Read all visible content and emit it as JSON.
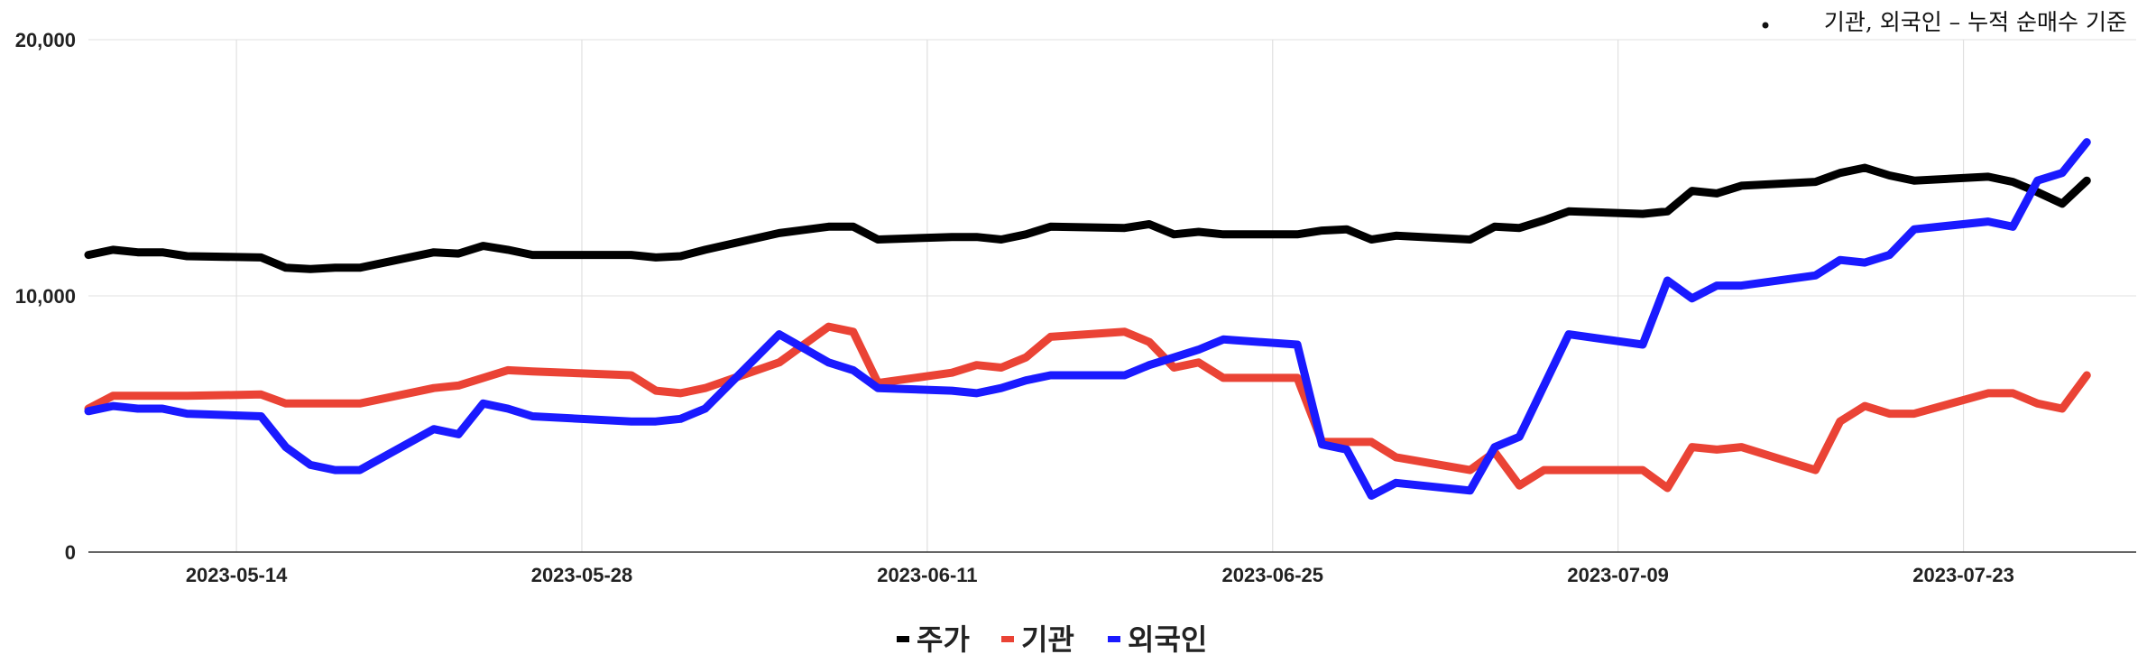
{
  "annotation": "기관, 외국인 – 누적 순매수 기준",
  "chart_data": {
    "type": "line",
    "x_axis": {
      "min": "2023-05-08",
      "max": "2023-07-30",
      "ticks": [
        "2023-05-14",
        "2023-05-28",
        "2023-06-11",
        "2023-06-25",
        "2023-07-09",
        "2023-07-23"
      ]
    },
    "y_axis": {
      "min": 0,
      "max": 20000,
      "ticks": [
        0,
        10000,
        20000
      ],
      "tick_labels": [
        "0",
        "10,000",
        "20,000"
      ]
    },
    "grid": true,
    "legend_position": "bottom",
    "series": [
      {
        "name": "주가",
        "color": "#000000",
        "points": [
          [
            "2023-05-08",
            11600
          ],
          [
            "2023-05-09",
            11800
          ],
          [
            "2023-05-10",
            11700
          ],
          [
            "2023-05-11",
            11700
          ],
          [
            "2023-05-12",
            11550
          ],
          [
            "2023-05-15",
            11500
          ],
          [
            "2023-05-16",
            11100
          ],
          [
            "2023-05-17",
            11050
          ],
          [
            "2023-05-18",
            11100
          ],
          [
            "2023-05-19",
            11100
          ],
          [
            "2023-05-22",
            11700
          ],
          [
            "2023-05-23",
            11650
          ],
          [
            "2023-05-24",
            11950
          ],
          [
            "2023-05-25",
            11800
          ],
          [
            "2023-05-26",
            11600
          ],
          [
            "2023-05-30",
            11600
          ],
          [
            "2023-05-31",
            11500
          ],
          [
            "2023-06-01",
            11550
          ],
          [
            "2023-06-02",
            11800
          ],
          [
            "2023-06-05",
            12450
          ],
          [
            "2023-06-07",
            12700
          ],
          [
            "2023-06-08",
            12700
          ],
          [
            "2023-06-09",
            12200
          ],
          [
            "2023-06-12",
            12300
          ],
          [
            "2023-06-13",
            12300
          ],
          [
            "2023-06-14",
            12200
          ],
          [
            "2023-06-15",
            12400
          ],
          [
            "2023-06-16",
            12700
          ],
          [
            "2023-06-19",
            12650
          ],
          [
            "2023-06-20",
            12800
          ],
          [
            "2023-06-21",
            12400
          ],
          [
            "2023-06-22",
            12500
          ],
          [
            "2023-06-23",
            12400
          ],
          [
            "2023-06-26",
            12400
          ],
          [
            "2023-06-27",
            12550
          ],
          [
            "2023-06-28",
            12600
          ],
          [
            "2023-06-29",
            12200
          ],
          [
            "2023-06-30",
            12350
          ],
          [
            "2023-07-03",
            12200
          ],
          [
            "2023-07-04",
            12700
          ],
          [
            "2023-07-05",
            12650
          ],
          [
            "2023-07-06",
            12950
          ],
          [
            "2023-07-07",
            13300
          ],
          [
            "2023-07-10",
            13200
          ],
          [
            "2023-07-11",
            13300
          ],
          [
            "2023-07-12",
            14100
          ],
          [
            "2023-07-13",
            14000
          ],
          [
            "2023-07-14",
            14300
          ],
          [
            "2023-07-17",
            14450
          ],
          [
            "2023-07-18",
            14800
          ],
          [
            "2023-07-19",
            15000
          ],
          [
            "2023-07-20",
            14700
          ],
          [
            "2023-07-21",
            14500
          ],
          [
            "2023-07-24",
            14650
          ],
          [
            "2023-07-25",
            14450
          ],
          [
            "2023-07-26",
            14050
          ],
          [
            "2023-07-27",
            13600
          ],
          [
            "2023-07-28",
            14500
          ]
        ]
      },
      {
        "name": "기관",
        "color": "#ea4335",
        "points": [
          [
            "2023-05-08",
            5600
          ],
          [
            "2023-05-09",
            6100
          ],
          [
            "2023-05-10",
            6100
          ],
          [
            "2023-05-11",
            6100
          ],
          [
            "2023-05-12",
            6100
          ],
          [
            "2023-05-15",
            6150
          ],
          [
            "2023-05-16",
            5800
          ],
          [
            "2023-05-17",
            5800
          ],
          [
            "2023-05-18",
            5800
          ],
          [
            "2023-05-19",
            5800
          ],
          [
            "2023-05-22",
            6400
          ],
          [
            "2023-05-23",
            6500
          ],
          [
            "2023-05-24",
            6800
          ],
          [
            "2023-05-25",
            7100
          ],
          [
            "2023-05-26",
            7050
          ],
          [
            "2023-05-30",
            6900
          ],
          [
            "2023-05-31",
            6300
          ],
          [
            "2023-06-01",
            6200
          ],
          [
            "2023-06-02",
            6400
          ],
          [
            "2023-06-05",
            7400
          ],
          [
            "2023-06-07",
            8800
          ],
          [
            "2023-06-08",
            8600
          ],
          [
            "2023-06-09",
            6600
          ],
          [
            "2023-06-12",
            7000
          ],
          [
            "2023-06-13",
            7300
          ],
          [
            "2023-06-14",
            7200
          ],
          [
            "2023-06-15",
            7600
          ],
          [
            "2023-06-16",
            8400
          ],
          [
            "2023-06-19",
            8600
          ],
          [
            "2023-06-20",
            8200
          ],
          [
            "2023-06-21",
            7200
          ],
          [
            "2023-06-22",
            7400
          ],
          [
            "2023-06-23",
            6800
          ],
          [
            "2023-06-26",
            6800
          ],
          [
            "2023-06-27",
            4300
          ],
          [
            "2023-06-28",
            4300
          ],
          [
            "2023-06-29",
            4300
          ],
          [
            "2023-06-30",
            3700
          ],
          [
            "2023-07-03",
            3200
          ],
          [
            "2023-07-04",
            3900
          ],
          [
            "2023-07-05",
            2600
          ],
          [
            "2023-07-06",
            3200
          ],
          [
            "2023-07-07",
            3200
          ],
          [
            "2023-07-10",
            3200
          ],
          [
            "2023-07-11",
            2500
          ],
          [
            "2023-07-12",
            4100
          ],
          [
            "2023-07-13",
            4000
          ],
          [
            "2023-07-14",
            4100
          ],
          [
            "2023-07-17",
            3200
          ],
          [
            "2023-07-18",
            5100
          ],
          [
            "2023-07-19",
            5700
          ],
          [
            "2023-07-20",
            5400
          ],
          [
            "2023-07-21",
            5400
          ],
          [
            "2023-07-24",
            6200
          ],
          [
            "2023-07-25",
            6200
          ],
          [
            "2023-07-26",
            5800
          ],
          [
            "2023-07-27",
            5600
          ],
          [
            "2023-07-28",
            6900
          ]
        ]
      },
      {
        "name": "외국인",
        "color": "#1a1aff",
        "points": [
          [
            "2023-05-08",
            5500
          ],
          [
            "2023-05-09",
            5700
          ],
          [
            "2023-05-10",
            5600
          ],
          [
            "2023-05-11",
            5600
          ],
          [
            "2023-05-12",
            5400
          ],
          [
            "2023-05-15",
            5300
          ],
          [
            "2023-05-16",
            4100
          ],
          [
            "2023-05-17",
            3400
          ],
          [
            "2023-05-18",
            3200
          ],
          [
            "2023-05-19",
            3200
          ],
          [
            "2023-05-22",
            4800
          ],
          [
            "2023-05-23",
            4600
          ],
          [
            "2023-05-24",
            5800
          ],
          [
            "2023-05-25",
            5600
          ],
          [
            "2023-05-26",
            5300
          ],
          [
            "2023-05-30",
            5100
          ],
          [
            "2023-05-31",
            5100
          ],
          [
            "2023-06-01",
            5200
          ],
          [
            "2023-06-02",
            5600
          ],
          [
            "2023-06-05",
            8500
          ],
          [
            "2023-06-07",
            7400
          ],
          [
            "2023-06-08",
            7100
          ],
          [
            "2023-06-09",
            6400
          ],
          [
            "2023-06-12",
            6300
          ],
          [
            "2023-06-13",
            6200
          ],
          [
            "2023-06-14",
            6400
          ],
          [
            "2023-06-15",
            6700
          ],
          [
            "2023-06-16",
            6900
          ],
          [
            "2023-06-19",
            6900
          ],
          [
            "2023-06-20",
            7300
          ],
          [
            "2023-06-21",
            7600
          ],
          [
            "2023-06-22",
            7900
          ],
          [
            "2023-06-23",
            8300
          ],
          [
            "2023-06-26",
            8100
          ],
          [
            "2023-06-27",
            4200
          ],
          [
            "2023-06-28",
            4000
          ],
          [
            "2023-06-29",
            2200
          ],
          [
            "2023-06-30",
            2700
          ],
          [
            "2023-07-03",
            2400
          ],
          [
            "2023-07-04",
            4100
          ],
          [
            "2023-07-05",
            4500
          ],
          [
            "2023-07-06",
            6500
          ],
          [
            "2023-07-07",
            8500
          ],
          [
            "2023-07-10",
            8100
          ],
          [
            "2023-07-11",
            10600
          ],
          [
            "2023-07-12",
            9900
          ],
          [
            "2023-07-13",
            10400
          ],
          [
            "2023-07-14",
            10400
          ],
          [
            "2023-07-17",
            10800
          ],
          [
            "2023-07-18",
            11400
          ],
          [
            "2023-07-19",
            11300
          ],
          [
            "2023-07-20",
            11600
          ],
          [
            "2023-07-21",
            12600
          ],
          [
            "2023-07-24",
            12900
          ],
          [
            "2023-07-25",
            12700
          ],
          [
            "2023-07-26",
            14500
          ],
          [
            "2023-07-27",
            14800
          ],
          [
            "2023-07-28",
            16000
          ]
        ]
      }
    ]
  }
}
